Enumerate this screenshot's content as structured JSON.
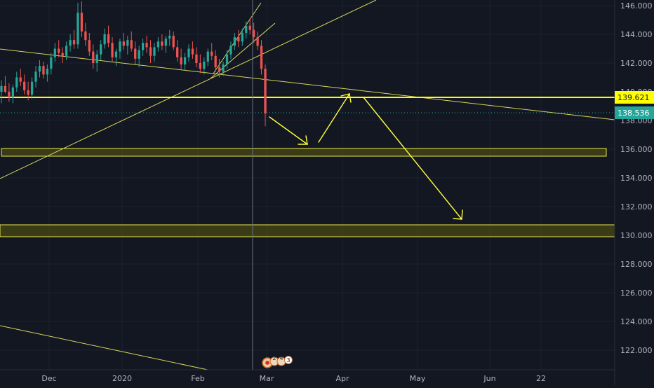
{
  "chart_data": {
    "type": "candlestick",
    "y_axis": {
      "ticks": [
        "122.000",
        "124.000",
        "126.000",
        "128.000",
        "130.000",
        "132.000",
        "134.000",
        "136.000",
        "138.000",
        "140.000",
        "142.000",
        "144.000",
        "146.000"
      ],
      "range": [
        120.5,
        146.4
      ]
    },
    "x_axis": {
      "ticks": [
        "Dec",
        "2020",
        "Feb",
        "Mar",
        "Apr",
        "May",
        "Jun",
        "22"
      ]
    },
    "price_labels": {
      "resistance": {
        "text": "139.621",
        "value": 139.621,
        "color": "#ffff00"
      },
      "last_price": {
        "text": "138.536",
        "value": 138.536,
        "color": "#26a69a"
      }
    },
    "cursor_date_index": 100,
    "candles_ohlc_sample": {
      "start_index": 0,
      "series": [
        [
          140.0,
          140.8,
          139.2,
          140.4
        ],
        [
          140.4,
          141.1,
          139.9,
          140.0
        ],
        [
          140.0,
          140.6,
          139.3,
          139.6
        ],
        [
          139.6,
          140.5,
          139.2,
          140.3
        ],
        [
          140.3,
          141.4,
          140.0,
          141.0
        ],
        [
          141.0,
          141.6,
          140.4,
          140.7
        ],
        [
          140.7,
          141.2,
          139.8,
          140.1
        ],
        [
          140.1,
          140.7,
          139.4,
          139.8
        ],
        [
          139.8,
          141.0,
          139.5,
          140.7
        ],
        [
          140.7,
          141.8,
          140.3,
          141.4
        ],
        [
          141.4,
          142.2,
          141.0,
          141.8
        ],
        [
          141.8,
          142.1,
          140.9,
          141.2
        ],
        [
          141.2,
          141.9,
          140.7,
          141.6
        ],
        [
          141.6,
          142.7,
          141.2,
          142.4
        ],
        [
          142.4,
          143.4,
          142.1,
          143.0
        ],
        [
          143.0,
          143.6,
          142.4,
          142.7
        ],
        [
          142.7,
          143.1,
          142.0,
          142.5
        ],
        [
          142.5,
          143.5,
          142.2,
          143.2
        ],
        [
          143.2,
          144.0,
          142.8,
          143.6
        ],
        [
          143.6,
          144.3,
          143.0,
          143.3
        ],
        [
          143.3,
          146.2,
          143.0,
          145.5
        ],
        [
          145.5,
          146.3,
          143.8,
          144.2
        ],
        [
          144.2,
          144.8,
          143.2,
          143.6
        ],
        [
          143.6,
          144.1,
          142.5,
          142.8
        ],
        [
          142.8,
          143.3,
          141.6,
          142.0
        ],
        [
          142.0,
          142.9,
          141.4,
          142.6
        ],
        [
          142.6,
          143.6,
          142.2,
          143.3
        ],
        [
          143.3,
          144.4,
          143.0,
          144.0
        ],
        [
          144.0,
          144.6,
          143.1,
          143.4
        ],
        [
          143.4,
          143.8,
          142.1,
          142.4
        ],
        [
          142.4,
          143.0,
          141.8,
          142.8
        ],
        [
          142.8,
          143.7,
          142.3,
          143.5
        ],
        [
          143.5,
          144.1,
          142.9,
          143.2
        ],
        [
          143.2,
          143.9,
          142.6,
          143.6
        ],
        [
          143.6,
          144.2,
          142.8,
          143.0
        ],
        [
          143.0,
          143.5,
          141.9,
          142.3
        ],
        [
          142.3,
          143.2,
          141.7,
          142.9
        ],
        [
          142.9,
          143.7,
          142.5,
          143.4
        ],
        [
          143.4,
          143.9,
          142.7,
          143.1
        ],
        [
          143.1,
          143.6,
          142.0,
          142.5
        ],
        [
          142.5,
          143.4,
          142.1,
          143.1
        ],
        [
          143.1,
          143.8,
          142.8,
          143.5
        ],
        [
          143.5,
          144.0,
          142.9,
          143.2
        ],
        [
          143.2,
          143.9,
          142.7,
          143.7
        ],
        [
          143.7,
          144.3,
          143.2,
          143.9
        ],
        [
          143.9,
          144.2,
          142.9,
          143.1
        ],
        [
          143.1,
          143.6,
          142.1,
          142.4
        ],
        [
          142.4,
          143.0,
          141.6,
          141.9
        ],
        [
          141.9,
          142.7,
          141.5,
          142.4
        ],
        [
          142.4,
          143.3,
          142.1,
          143.0
        ],
        [
          143.0,
          143.5,
          142.3,
          142.6
        ],
        [
          142.6,
          143.1,
          141.7,
          142.0
        ],
        [
          142.0,
          142.6,
          141.3,
          141.6
        ],
        [
          141.6,
          142.4,
          141.2,
          142.1
        ],
        [
          142.1,
          143.0,
          141.8,
          142.8
        ],
        [
          142.8,
          143.4,
          142.2,
          142.5
        ],
        [
          142.5,
          142.9,
          141.4,
          141.7
        ],
        [
          141.7,
          142.3,
          141.0,
          141.4
        ],
        [
          141.4,
          142.1,
          141.1,
          141.9
        ],
        [
          141.9,
          142.9,
          141.6,
          142.6
        ],
        [
          142.6,
          143.5,
          142.3,
          143.2
        ],
        [
          143.2,
          144.1,
          142.9,
          143.8
        ],
        [
          143.8,
          144.3,
          143.1,
          143.5
        ],
        [
          143.5,
          144.4,
          143.2,
          144.1
        ],
        [
          144.1,
          144.9,
          143.7,
          144.6
        ],
        [
          144.6,
          145.1,
          144.0,
          144.3
        ],
        [
          144.3,
          144.8,
          143.4,
          143.8
        ],
        [
          143.8,
          144.2,
          142.9,
          143.2
        ],
        [
          143.2,
          143.6,
          141.2,
          141.6
        ],
        [
          141.6,
          141.9,
          137.6,
          138.5
        ]
      ]
    },
    "annotations": [
      "horizontal-resistance-line",
      "support-zone-136",
      "support-zone-130",
      "descending-trendline",
      "ascending-trendlines",
      "projection-arrows"
    ]
  },
  "event_markers": {
    "count_labels": [
      "2",
      "4",
      "3"
    ]
  }
}
